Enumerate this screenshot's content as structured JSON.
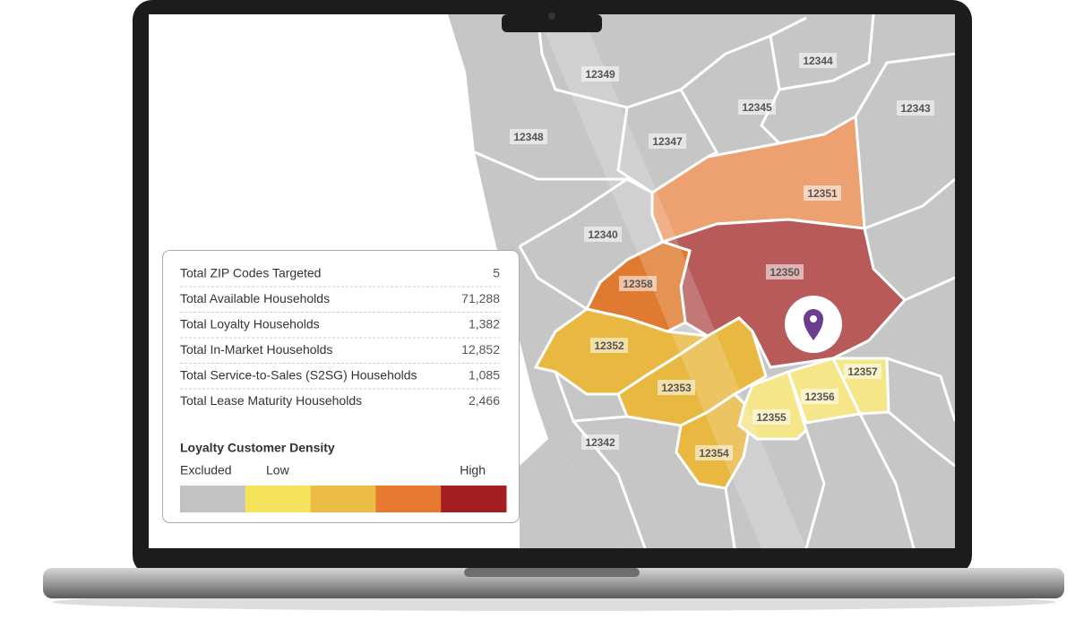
{
  "zips": [
    "12349",
    "12344",
    "12345",
    "12343",
    "12348",
    "12347",
    "12351",
    "12340",
    "12350",
    "12358",
    "12352",
    "12353",
    "12357",
    "12356",
    "12355",
    "12342",
    "12354"
  ],
  "stats": [
    {
      "label": "Total ZIP Codes Targeted",
      "value": "5"
    },
    {
      "label": "Total Available Households",
      "value": "71,288"
    },
    {
      "label": "Total Loyalty Households",
      "value": "1,382"
    },
    {
      "label": "Total In-Market Households",
      "value": "12,852"
    },
    {
      "label": "Total Service-to-Sales (S2SG) Households",
      "value": "1,085"
    },
    {
      "label": "Total Lease Maturity Households",
      "value": "2,466"
    }
  ],
  "legend": {
    "title": "Loyalty Customer Density",
    "labels": [
      "Excluded",
      "Low",
      "High"
    ],
    "colors": [
      "#c2c2c2",
      "#f5e35c",
      "#ecbd44",
      "#e67a30",
      "#a41f22"
    ]
  }
}
